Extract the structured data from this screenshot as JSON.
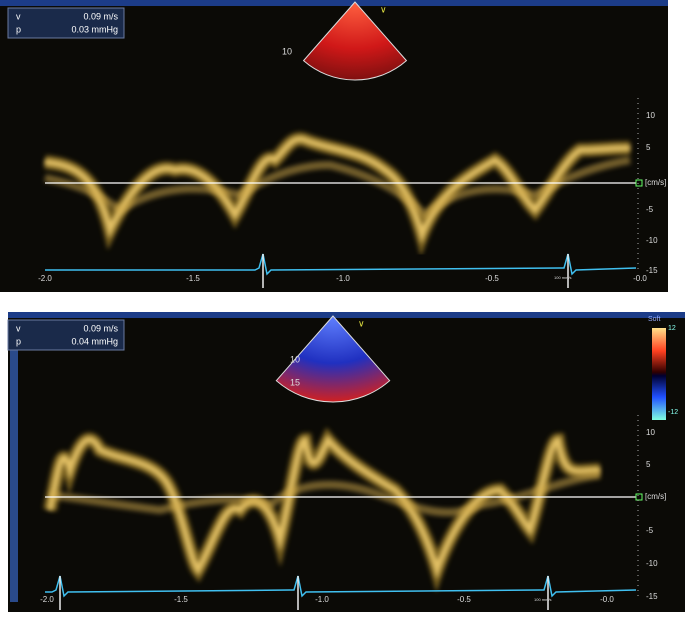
{
  "panels": [
    {
      "readout": {
        "v_label": "v",
        "v_value": "0.09 m/s",
        "p_label": "p",
        "p_value": "0.03 mmHg"
      },
      "sector_depth": [
        "10"
      ],
      "y_labels": [
        "10",
        "5",
        "-5",
        "-10",
        "-15"
      ],
      "unit": "[cm/s]",
      "x_labels": [
        "-2.0",
        "-1.5",
        "-1.0",
        "-0.5",
        "-0.0"
      ],
      "speed": "100 mm/s"
    },
    {
      "readout": {
        "v_label": "v",
        "v_value": "0.09 m/s",
        "p_label": "p",
        "p_value": "0.04 mmHg"
      },
      "sector_depth": [
        "10",
        "15"
      ],
      "y_labels": [
        "10",
        "5",
        "-5",
        "-10",
        "-15"
      ],
      "unit": "[cm/s]",
      "x_labels": [
        "-2.0",
        "-1.5",
        "-1.0",
        "-0.5",
        "-0.0"
      ],
      "speed": "100 mm/s",
      "color_bar": {
        "title": "Soft",
        "max": "12",
        "min": "-12"
      }
    }
  ]
}
